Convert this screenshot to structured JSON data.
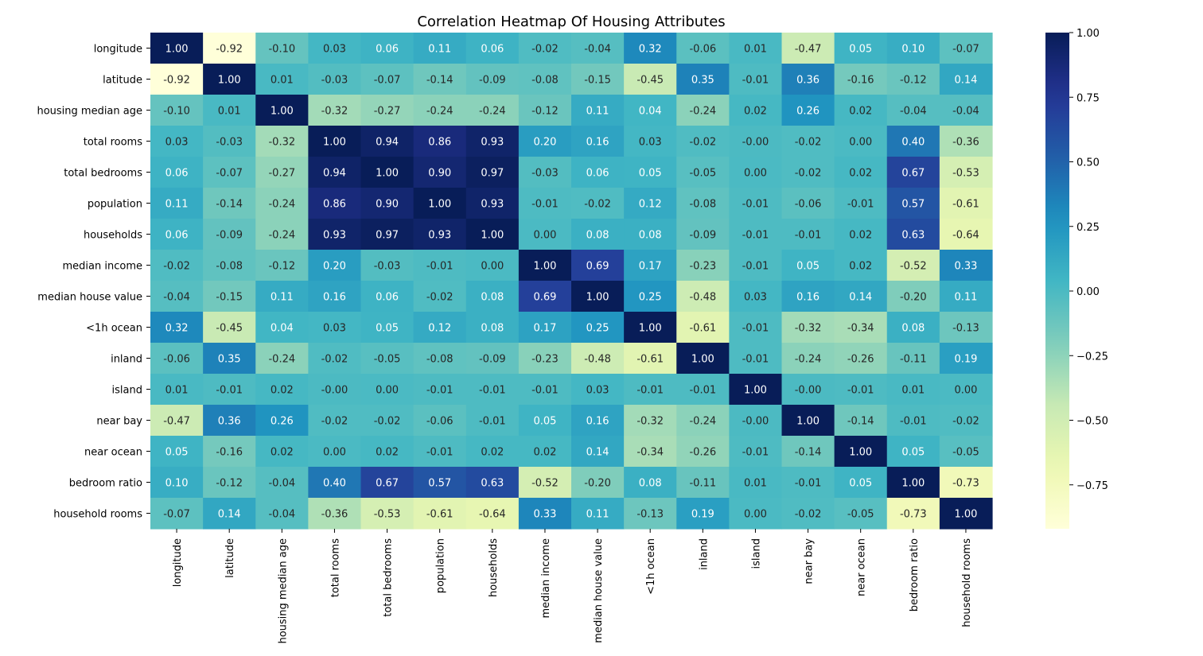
{
  "chart_data": {
    "type": "heatmap",
    "title": "Correlation Heatmap Of Housing Attributes",
    "labels": [
      "longitude",
      "latitude",
      "housing median age",
      "total rooms",
      "total bedrooms",
      "population",
      "households",
      "median income",
      "median house value",
      "<1h ocean",
      "inland",
      "island",
      "near bay",
      "near ocean",
      "bedroom ratio",
      "household rooms"
    ],
    "values": [
      [
        1.0,
        -0.92,
        -0.1,
        0.03,
        0.06,
        0.11,
        0.06,
        -0.02,
        -0.04,
        0.32,
        -0.06,
        0.01,
        -0.47,
        0.05,
        0.1,
        -0.07
      ],
      [
        -0.92,
        1.0,
        0.01,
        -0.03,
        -0.07,
        -0.14,
        -0.09,
        -0.08,
        -0.15,
        -0.45,
        0.35,
        -0.01,
        0.36,
        -0.16,
        -0.12,
        0.14
      ],
      [
        -0.1,
        0.01,
        1.0,
        -0.32,
        -0.27,
        -0.24,
        -0.24,
        -0.12,
        0.11,
        0.04,
        -0.24,
        0.02,
        0.26,
        0.02,
        -0.04,
        -0.04
      ],
      [
        0.03,
        -0.03,
        -0.32,
        1.0,
        0.94,
        0.86,
        0.93,
        0.2,
        0.16,
        0.03,
        -0.02,
        -0.001,
        -0.02,
        0.0,
        0.4,
        -0.36
      ],
      [
        0.06,
        -0.07,
        -0.27,
        0.94,
        1.0,
        0.9,
        0.97,
        -0.03,
        0.06,
        0.05,
        -0.05,
        0.0,
        -0.02,
        0.02,
        0.67,
        -0.53
      ],
      [
        0.11,
        -0.14,
        -0.24,
        0.86,
        0.9,
        1.0,
        0.93,
        -0.01,
        -0.02,
        0.12,
        -0.08,
        -0.01,
        -0.06,
        -0.01,
        0.57,
        -0.61
      ],
      [
        0.06,
        -0.09,
        -0.24,
        0.93,
        0.97,
        0.93,
        1.0,
        0.0,
        0.08,
        0.08,
        -0.09,
        -0.01,
        -0.01,
        0.02,
        0.63,
        -0.64
      ],
      [
        -0.02,
        -0.08,
        -0.12,
        0.2,
        -0.03,
        -0.01,
        0.0,
        1.0,
        0.69,
        0.17,
        -0.23,
        -0.01,
        0.05,
        0.02,
        -0.52,
        0.33
      ],
      [
        -0.04,
        -0.15,
        0.11,
        0.16,
        0.06,
        -0.02,
        0.08,
        0.69,
        1.0,
        0.25,
        -0.48,
        0.03,
        0.16,
        0.14,
        -0.2,
        0.11
      ],
      [
        0.32,
        -0.45,
        0.04,
        0.03,
        0.05,
        0.12,
        0.08,
        0.17,
        0.25,
        1.0,
        -0.61,
        -0.01,
        -0.32,
        -0.34,
        0.08,
        -0.13
      ],
      [
        -0.06,
        0.35,
        -0.24,
        -0.02,
        -0.05,
        -0.08,
        -0.09,
        -0.23,
        -0.48,
        -0.61,
        1.0,
        -0.01,
        -0.24,
        -0.26,
        -0.11,
        0.19
      ],
      [
        0.01,
        -0.01,
        0.02,
        -0.001,
        0.0,
        -0.01,
        -0.01,
        -0.01,
        0.03,
        -0.01,
        -0.01,
        1.0,
        -0.001,
        -0.01,
        0.01,
        0.0
      ],
      [
        -0.47,
        0.36,
        0.26,
        -0.02,
        -0.02,
        -0.06,
        -0.01,
        0.05,
        0.16,
        -0.32,
        -0.24,
        -0.001,
        1.0,
        -0.14,
        -0.01,
        -0.02
      ],
      [
        0.05,
        -0.16,
        0.02,
        0.0,
        0.02,
        -0.01,
        0.02,
        0.02,
        0.14,
        -0.34,
        -0.26,
        -0.01,
        -0.14,
        1.0,
        0.05,
        -0.05
      ],
      [
        0.1,
        -0.12,
        -0.04,
        0.4,
        0.67,
        0.57,
        0.63,
        -0.52,
        -0.2,
        0.08,
        -0.11,
        0.01,
        -0.01,
        0.05,
        1.0,
        -0.73
      ],
      [
        -0.07,
        0.14,
        -0.04,
        -0.36,
        -0.53,
        -0.61,
        -0.64,
        0.33,
        0.11,
        -0.13,
        0.19,
        0.0,
        -0.02,
        -0.05,
        -0.73,
        1.0
      ]
    ],
    "colormap": "YlGnBu",
    "vmin": -0.92,
    "vmax": 1.0,
    "colorbar_ticks": [
      1.0,
      0.75,
      0.5,
      0.25,
      0.0,
      -0.25,
      -0.5,
      -0.75
    ],
    "colorbar_tick_labels": [
      "1.00",
      "0.75",
      "0.50",
      "0.25",
      "0.00",
      "−0.25",
      "−0.50",
      "−0.75"
    ],
    "annotation_format": "2 decimals",
    "colorbar_position": "right"
  }
}
